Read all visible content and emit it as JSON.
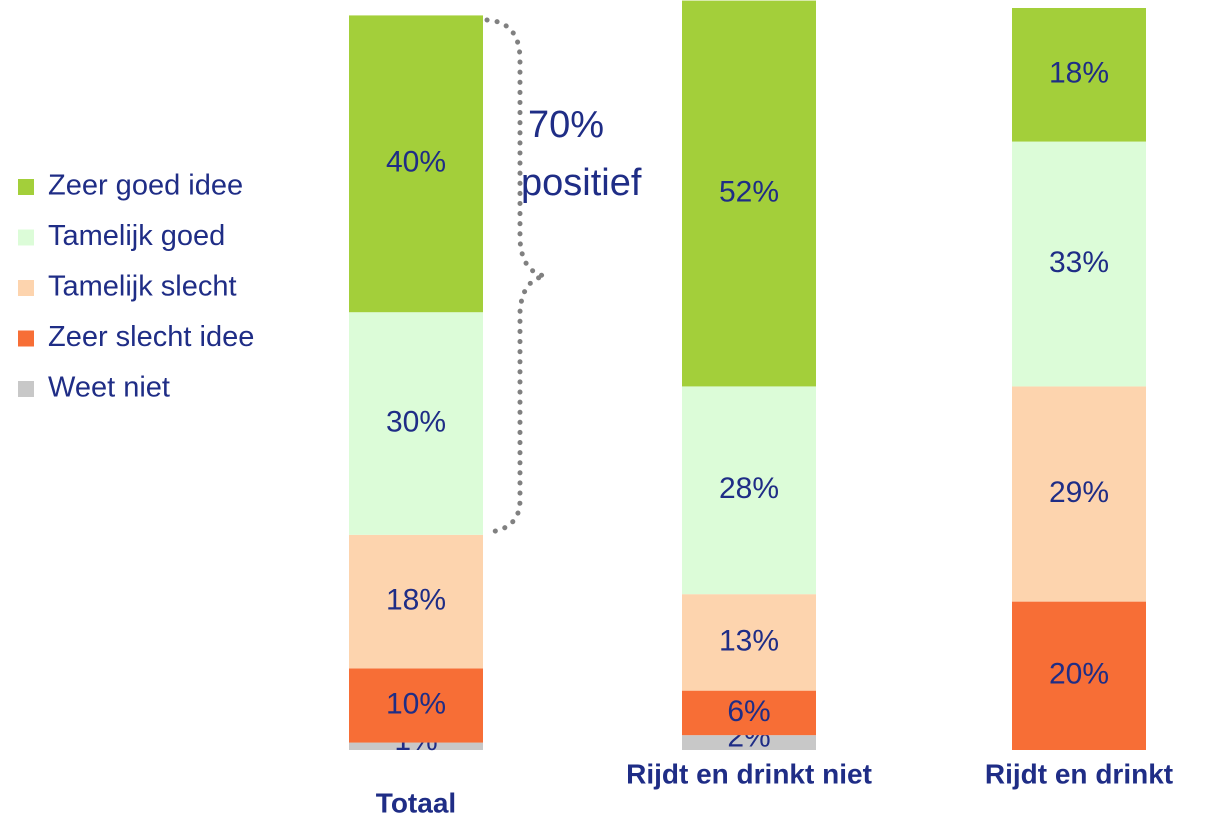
{
  "chart_data": {
    "type": "stacked_bar",
    "categories": [
      "Totaal",
      "Rijdt en drinkt niet",
      "Rijdt en drinkt"
    ],
    "series": [
      {
        "name": "Zeer goed idee",
        "color": "#a3cf3a",
        "values": [
          40,
          52,
          18
        ]
      },
      {
        "name": "Tamelijk goed",
        "color": "#dcfcd8",
        "values": [
          30,
          28,
          33
        ]
      },
      {
        "name": "Tamelijk slecht",
        "color": "#fdd4ae",
        "values": [
          18,
          13,
          29
        ]
      },
      {
        "name": "Zeer slecht idee",
        "color": "#f76e36",
        "values": [
          10,
          6,
          20
        ]
      },
      {
        "name": "Weet niet",
        "color": "#c8c8c8",
        "values": [
          1,
          2,
          null
        ]
      }
    ],
    "value_labels": [
      [
        "40%",
        "52%",
        "18%"
      ],
      [
        "30%",
        "28%",
        "33%"
      ],
      [
        "18%",
        "13%",
        "29%"
      ],
      [
        "10%",
        "6%",
        "20%"
      ],
      [
        "1%",
        "2%",
        null
      ]
    ],
    "ylim": [
      0,
      100
    ],
    "annotation": [
      "70%",
      "positief"
    ]
  }
}
